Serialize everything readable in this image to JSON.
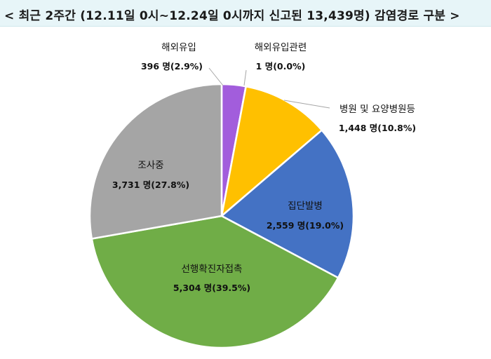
{
  "title": "< 최근 2주간 (12.11일 0시~12.24일 0시까지 신고된 13,439명) 감염경로 구분 >",
  "chart_data": {
    "type": "pie",
    "title": "< 최근 2주간 (12.11일 0시~12.24일 0시까지 신고된 13,439명) 감염경로 구분 >",
    "unit": "명",
    "total": 13439,
    "slices": [
      {
        "name": "해외유입",
        "value": 396,
        "value_label": "396 명(2.9%)",
        "percent": 2.9,
        "color": "#a25ddc"
      },
      {
        "name": "해외유입관련",
        "value": 1,
        "value_label": "1 명(0.0%)",
        "percent": 0.0,
        "color": "#7a3fb0"
      },
      {
        "name": "병원 및 요양병원등",
        "value": 1448,
        "value_label": "1,448 명(10.8%)",
        "percent": 10.8,
        "color": "#ffc000"
      },
      {
        "name": "집단발병",
        "value": 2559,
        "value_label": "2,559 명(19.0%)",
        "percent": 19.0,
        "color": "#4472c4"
      },
      {
        "name": "선행확진자접촉",
        "value": 5304,
        "value_label": "5,304 명(39.5%)",
        "percent": 39.5,
        "color": "#70ad47"
      },
      {
        "name": "조사중",
        "value": 3731,
        "value_label": "3,731 명(27.8%)",
        "percent": 27.8,
        "color": "#a5a5a5"
      }
    ]
  }
}
